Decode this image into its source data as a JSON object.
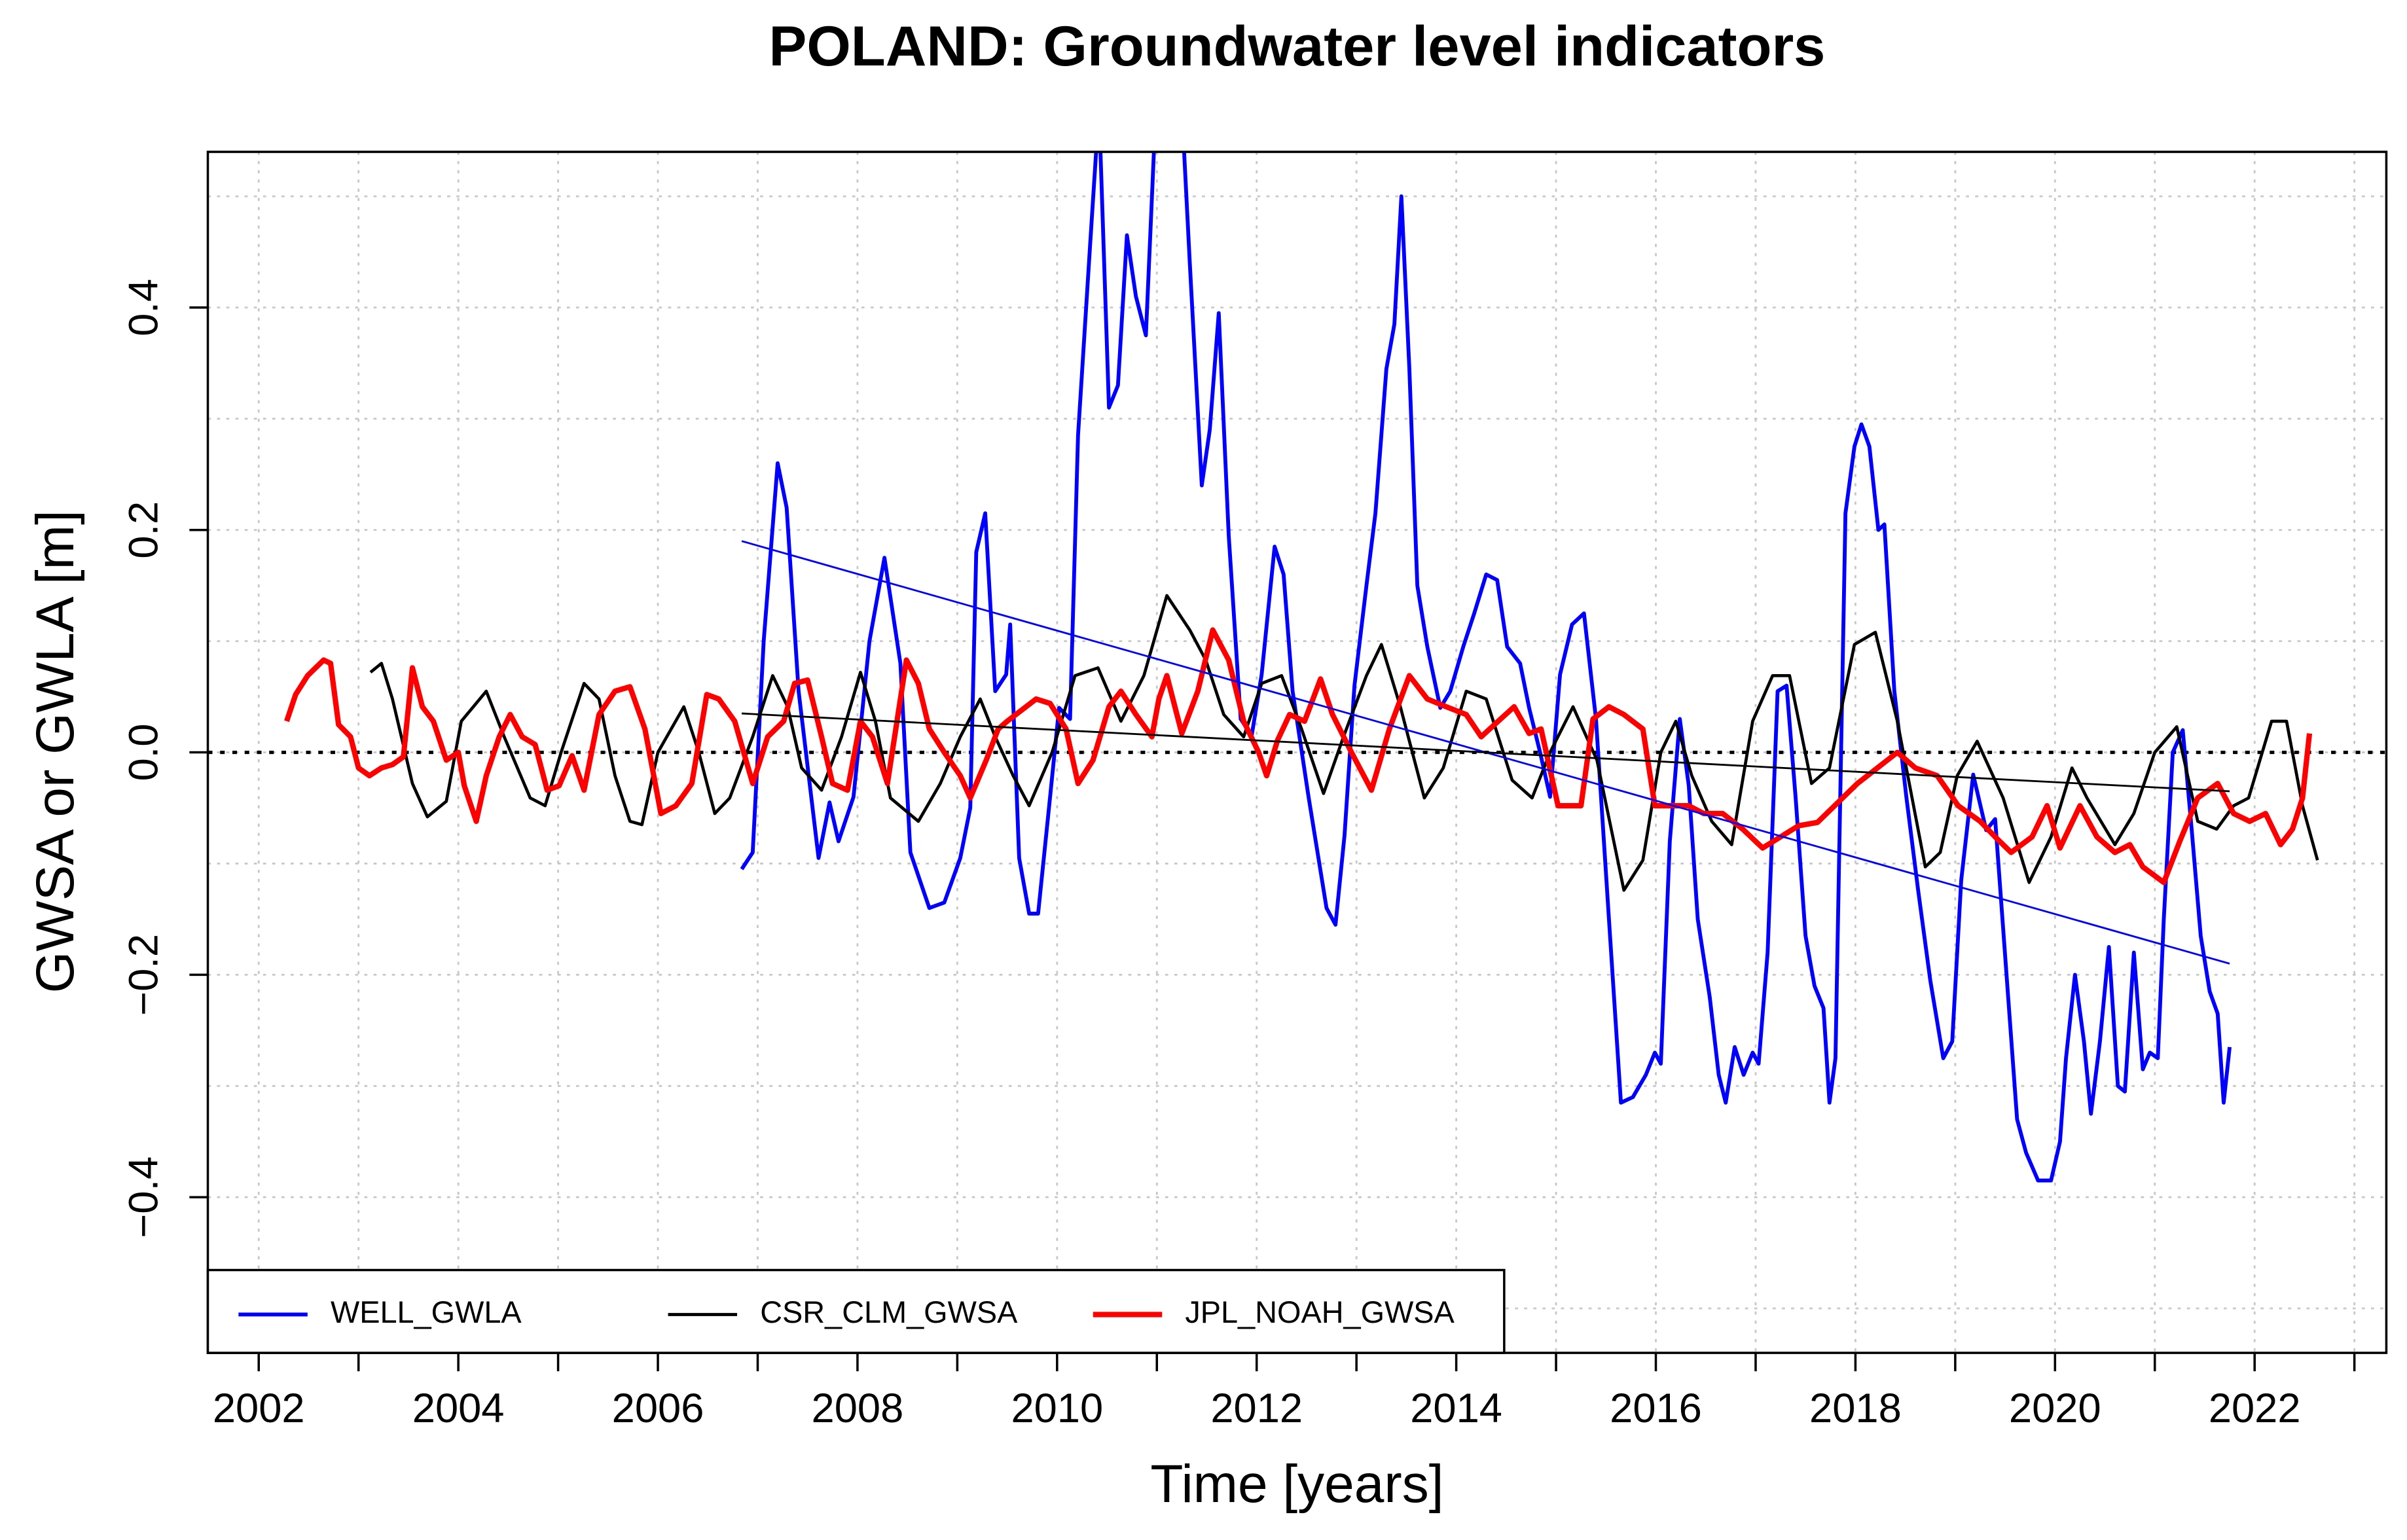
{
  "chart_data": {
    "type": "line",
    "title": "POLAND: Groundwater level indicators",
    "xlabel": "Time [years]",
    "ylabel": "GWSA or GWLA [m]",
    "xlim": [
      2001.49,
      2023.32
    ],
    "ylim": [
      -0.54,
      0.54
    ],
    "xticks": [
      2002,
      2004,
      2006,
      2008,
      2010,
      2012,
      2014,
      2016,
      2018,
      2020,
      2022
    ],
    "xgrid": [
      2002,
      2003,
      2004,
      2005,
      2006,
      2007,
      2008,
      2009,
      2010,
      2011,
      2012,
      2013,
      2014,
      2015,
      2016,
      2017,
      2018,
      2019,
      2020,
      2021,
      2022,
      2023
    ],
    "yticks": [
      {
        "value": -0.4,
        "label": "−0.4"
      },
      {
        "value": -0.2,
        "label": "−0.2"
      },
      {
        "value": 0,
        "label": "0.0"
      },
      0.2,
      0.4
    ],
    "ygrid": [
      -0.5,
      -0.4,
      -0.3,
      -0.2,
      -0.1,
      0,
      0.1,
      0.2,
      0.3,
      0.4,
      0.5
    ],
    "grid": true,
    "hline": 0,
    "legend": "bottom-left",
    "series": [
      {
        "name": "WELL_GWLA",
        "color": "#0000ff",
        "width": 2.5,
        "x": [
          2006.84,
          2006.95,
          2007.06,
          2007.2,
          2007.29,
          2007.41,
          2007.61,
          2007.72,
          2007.81,
          2007.96,
          2008.12,
          2008.27,
          2008.43,
          2008.53,
          2008.72,
          2008.87,
          2009.03,
          2009.13,
          2009.19,
          2009.28,
          2009.38,
          2009.49,
          2009.53,
          2009.62,
          2009.72,
          2009.81,
          2009.93,
          2010.02,
          2010.13,
          2010.21,
          2010.33,
          2010.42,
          2010.52,
          2010.61,
          2010.7,
          2010.79,
          2010.89,
          2010.98,
          2011.1,
          2011.25,
          2011.33,
          2011.45,
          2011.53,
          2011.62,
          2011.72,
          2011.84,
          2011.95,
          2012.05,
          2012.18,
          2012.27,
          2012.36,
          2012.52,
          2012.7,
          2012.79,
          2012.88,
          2012.98,
          2013.1,
          2013.19,
          2013.3,
          2013.38,
          2013.45,
          2013.53,
          2013.61,
          2013.71,
          2013.84,
          2013.94,
          2014.07,
          2014.18,
          2014.3,
          2014.41,
          2014.51,
          2014.64,
          2014.73,
          2014.84,
          2014.94,
          2015.04,
          2015.16,
          2015.28,
          2015.4,
          2015.53,
          2015.65,
          2015.77,
          2015.9,
          2015.99,
          2016.05,
          2016.14,
          2016.24,
          2016.33,
          2016.42,
          2016.54,
          2016.63,
          2016.7,
          2016.79,
          2016.88,
          2016.97,
          2017.03,
          2017.12,
          2017.22,
          2017.31,
          2017.4,
          2017.5,
          2017.59,
          2017.68,
          2017.74,
          2017.8,
          2017.9,
          2017.99,
          2018.06,
          2018.14,
          2018.23,
          2018.29,
          2018.39,
          2018.51,
          2018.63,
          2018.75,
          2018.88,
          2018.97,
          2019.06,
          2019.18,
          2019.31,
          2019.4,
          2019.51,
          2019.62,
          2019.71,
          2019.83,
          2019.96,
          2020.05,
          2020.11,
          2020.2,
          2020.29,
          2020.36,
          2020.45,
          2020.54,
          2020.63,
          2020.7,
          2020.79,
          2020.88,
          2020.95,
          2021.03,
          2021.09,
          2021.18,
          2021.28,
          2021.37,
          2021.46,
          2021.55,
          2021.63,
          2021.69,
          2021.75
        ],
        "values": [
          -0.105,
          -0.09,
          0.1,
          0.26,
          0.22,
          0.055,
          -0.095,
          -0.045,
          -0.08,
          -0.04,
          0.1,
          0.175,
          0.08,
          -0.09,
          -0.14,
          -0.135,
          -0.095,
          -0.05,
          0.18,
          0.215,
          0.055,
          0.07,
          0.115,
          -0.095,
          -0.145,
          -0.145,
          -0.04,
          0.04,
          0.03,
          0.285,
          0.455,
          0.58,
          0.31,
          0.33,
          0.465,
          0.41,
          0.375,
          0.56,
          0.62,
          0.58,
          0.44,
          0.24,
          0.29,
          0.395,
          0.195,
          0.03,
          0.015,
          0.07,
          0.185,
          0.16,
          0.055,
          -0.04,
          -0.14,
          -0.155,
          -0.075,
          0.06,
          0.15,
          0.215,
          0.345,
          0.385,
          0.5,
          0.345,
          0.15,
          0.095,
          0.04,
          0.055,
          0.095,
          0.125,
          0.16,
          0.155,
          0.095,
          0.08,
          0.04,
          0.0,
          -0.04,
          0.07,
          0.115,
          0.125,
          0.03,
          -0.15,
          -0.315,
          -0.31,
          -0.29,
          -0.27,
          -0.28,
          -0.08,
          0.03,
          -0.03,
          -0.15,
          -0.22,
          -0.29,
          -0.315,
          -0.265,
          -0.29,
          -0.27,
          -0.28,
          -0.18,
          0.055,
          0.06,
          -0.04,
          -0.165,
          -0.21,
          -0.23,
          -0.315,
          -0.275,
          0.215,
          0.275,
          0.295,
          0.275,
          0.2,
          0.205,
          0.055,
          -0.04,
          -0.125,
          -0.205,
          -0.275,
          -0.26,
          -0.115,
          -0.02,
          -0.07,
          -0.06,
          -0.195,
          -0.33,
          -0.36,
          -0.385,
          -0.385,
          -0.35,
          -0.275,
          -0.2,
          -0.26,
          -0.325,
          -0.26,
          -0.175,
          -0.3,
          -0.305,
          -0.18,
          -0.285,
          -0.27,
          -0.275,
          -0.15,
          0.0,
          0.02,
          -0.07,
          -0.165,
          -0.215,
          -0.235,
          -0.315,
          -0.265
        ]
      },
      {
        "name": "CSR_CLM_GWSA",
        "color": "#000000",
        "width": 2,
        "x": [
          2003.12,
          2003.23,
          2003.34,
          2003.54,
          2003.69,
          2003.88,
          2004.03,
          2004.28,
          2004.46,
          2004.72,
          2004.87,
          2005.03,
          2005.26,
          2005.41,
          2005.57,
          2005.72,
          2005.84,
          2006.0,
          2006.26,
          2006.41,
          2006.57,
          2006.72,
          2006.95,
          2007.15,
          2007.3,
          2007.44,
          2007.64,
          2007.84,
          2008.03,
          2008.18,
          2008.33,
          2008.61,
          2008.83,
          2009.03,
          2009.23,
          2009.38,
          2009.56,
          2009.72,
          2009.95,
          2010.18,
          2010.41,
          2010.64,
          2010.87,
          2011.1,
          2011.33,
          2011.49,
          2011.67,
          2011.87,
          2012.05,
          2012.25,
          2012.45,
          2012.67,
          2012.87,
          2013.1,
          2013.25,
          2013.44,
          2013.68,
          2013.87,
          2014.1,
          2014.3,
          2014.56,
          2014.76,
          2014.94,
          2015.17,
          2015.41,
          2015.68,
          2015.87,
          2016.05,
          2016.2,
          2016.36,
          2016.56,
          2016.76,
          2016.97,
          2017.17,
          2017.34,
          2017.56,
          2017.74,
          2017.99,
          2018.2,
          2018.42,
          2018.7,
          2018.85,
          2019.02,
          2019.22,
          2019.48,
          2019.74,
          2019.96,
          2020.17,
          2020.32,
          2020.6,
          2020.79,
          2021.0,
          2021.22,
          2021.43,
          2021.62,
          2021.79,
          2021.94,
          2022.17,
          2022.32,
          2022.48,
          2022.63
        ],
        "values": [
          0.072,
          0.08,
          0.048,
          -0.028,
          -0.058,
          -0.044,
          0.028,
          0.055,
          0.014,
          -0.041,
          -0.048,
          0.0,
          0.062,
          0.048,
          -0.021,
          -0.062,
          -0.065,
          0.0,
          0.041,
          0.0,
          -0.055,
          -0.041,
          0.014,
          0.069,
          0.041,
          -0.014,
          -0.034,
          0.014,
          0.072,
          0.028,
          -0.041,
          -0.062,
          -0.028,
          0.014,
          0.048,
          0.014,
          -0.021,
          -0.048,
          0.0,
          0.069,
          0.076,
          0.028,
          0.069,
          0.141,
          0.11,
          0.083,
          0.034,
          0.014,
          0.062,
          0.069,
          0.021,
          -0.037,
          0.014,
          0.069,
          0.097,
          0.041,
          -0.041,
          -0.014,
          0.055,
          0.048,
          -0.025,
          -0.041,
          0.0,
          0.041,
          -0.007,
          -0.124,
          -0.097,
          0.0,
          0.028,
          -0.021,
          -0.062,
          -0.083,
          0.028,
          0.069,
          0.069,
          -0.028,
          -0.014,
          0.097,
          0.108,
          0.028,
          -0.103,
          -0.09,
          -0.021,
          0.01,
          -0.041,
          -0.117,
          -0.076,
          -0.014,
          -0.041,
          -0.083,
          -0.055,
          0.0,
          0.023,
          -0.062,
          -0.069,
          -0.048,
          -0.041,
          0.028,
          0.028,
          -0.048,
          -0.097
        ]
      },
      {
        "name": "JPL_NOAH_GWSA",
        "color": "#ff0000",
        "width": 3.5,
        "x": [
          2002.28,
          2002.37,
          2002.49,
          2002.65,
          2002.72,
          2002.8,
          2002.92,
          2003.0,
          2003.11,
          2003.23,
          2003.34,
          2003.45,
          2003.54,
          2003.64,
          2003.75,
          2003.88,
          2004.0,
          2004.06,
          2004.18,
          2004.28,
          2004.41,
          2004.52,
          2004.64,
          2004.77,
          2004.89,
          2005.01,
          2005.14,
          2005.26,
          2005.41,
          2005.57,
          2005.72,
          2005.87,
          2006.03,
          2006.18,
          2006.34,
          2006.49,
          2006.61,
          2006.77,
          2006.95,
          2007.1,
          2007.26,
          2007.37,
          2007.5,
          2007.64,
          2007.75,
          2007.9,
          2008.03,
          2008.15,
          2008.3,
          2008.49,
          2008.61,
          2008.72,
          2008.87,
          2009.03,
          2009.13,
          2009.29,
          2009.41,
          2009.5,
          2009.66,
          2009.79,
          2009.93,
          2010.09,
          2010.21,
          2010.36,
          2010.52,
          2010.64,
          2010.79,
          2010.95,
          2011.02,
          2011.1,
          2011.25,
          2011.41,
          2011.56,
          2011.72,
          2011.87,
          2012.02,
          2012.1,
          2012.21,
          2012.33,
          2012.48,
          2012.64,
          2012.76,
          2012.95,
          2013.15,
          2013.33,
          2013.53,
          2013.71,
          2013.9,
          2014.1,
          2014.25,
          2014.42,
          2014.58,
          2014.73,
          2014.85,
          2015.02,
          2015.25,
          2015.37,
          2015.53,
          2015.68,
          2015.87,
          2015.99,
          2016.17,
          2016.33,
          2016.48,
          2016.67,
          2016.87,
          2017.07,
          2017.25,
          2017.43,
          2017.62,
          2018.02,
          2018.42,
          2018.6,
          2018.82,
          2019.03,
          2019.25,
          2019.4,
          2019.56,
          2019.77,
          2019.92,
          2020.05,
          2020.25,
          2020.42,
          2020.6,
          2020.75,
          2020.88,
          2021.09,
          2021.25,
          2021.43,
          2021.63,
          2021.79,
          2021.95,
          2022.11,
          2022.26,
          2022.38,
          2022.48,
          2022.55
        ],
        "values": [
          0.028,
          0.052,
          0.069,
          0.083,
          0.08,
          0.025,
          0.014,
          -0.014,
          -0.021,
          -0.014,
          -0.011,
          -0.004,
          0.076,
          0.041,
          0.028,
          -0.007,
          0.0,
          -0.03,
          -0.062,
          -0.021,
          0.014,
          0.034,
          0.014,
          0.007,
          -0.034,
          -0.03,
          -0.003,
          -0.034,
          0.034,
          0.055,
          0.059,
          0.021,
          -0.055,
          -0.048,
          -0.028,
          0.052,
          0.048,
          0.028,
          -0.028,
          0.014,
          0.028,
          0.062,
          0.065,
          0.014,
          -0.028,
          -0.034,
          0.028,
          0.014,
          -0.028,
          0.083,
          0.062,
          0.021,
          0.0,
          -0.021,
          -0.041,
          -0.007,
          0.021,
          0.028,
          0.039,
          0.048,
          0.044,
          0.021,
          -0.028,
          -0.007,
          0.041,
          0.055,
          0.034,
          0.014,
          0.048,
          0.069,
          0.017,
          0.055,
          0.11,
          0.083,
          0.028,
          0.0,
          -0.021,
          0.011,
          0.034,
          0.028,
          0.066,
          0.034,
          0.0,
          -0.034,
          0.021,
          0.069,
          0.048,
          0.041,
          0.034,
          0.014,
          0.028,
          0.041,
          0.017,
          0.021,
          -0.048,
          -0.048,
          0.03,
          0.041,
          0.034,
          0.021,
          -0.048,
          -0.048,
          -0.048,
          -0.055,
          -0.055,
          -0.069,
          -0.086,
          -0.076,
          -0.066,
          -0.063,
          -0.028,
          0.0,
          -0.014,
          -0.021,
          -0.048,
          -0.062,
          -0.076,
          -0.09,
          -0.076,
          -0.048,
          -0.086,
          -0.048,
          -0.076,
          -0.09,
          -0.083,
          -0.103,
          -0.117,
          -0.08,
          -0.041,
          -0.028,
          -0.055,
          -0.062,
          -0.055,
          -0.083,
          -0.069,
          -0.041,
          0.017
        ]
      }
    ],
    "trend_lines": [
      {
        "color": "#0000ff",
        "x": [
          2006.84,
          2021.75
        ],
        "values": [
          0.19,
          -0.19
        ]
      },
      {
        "color": "#000000",
        "x": [
          2006.84,
          2021.75
        ],
        "values": [
          0.035,
          -0.035
        ]
      }
    ]
  }
}
